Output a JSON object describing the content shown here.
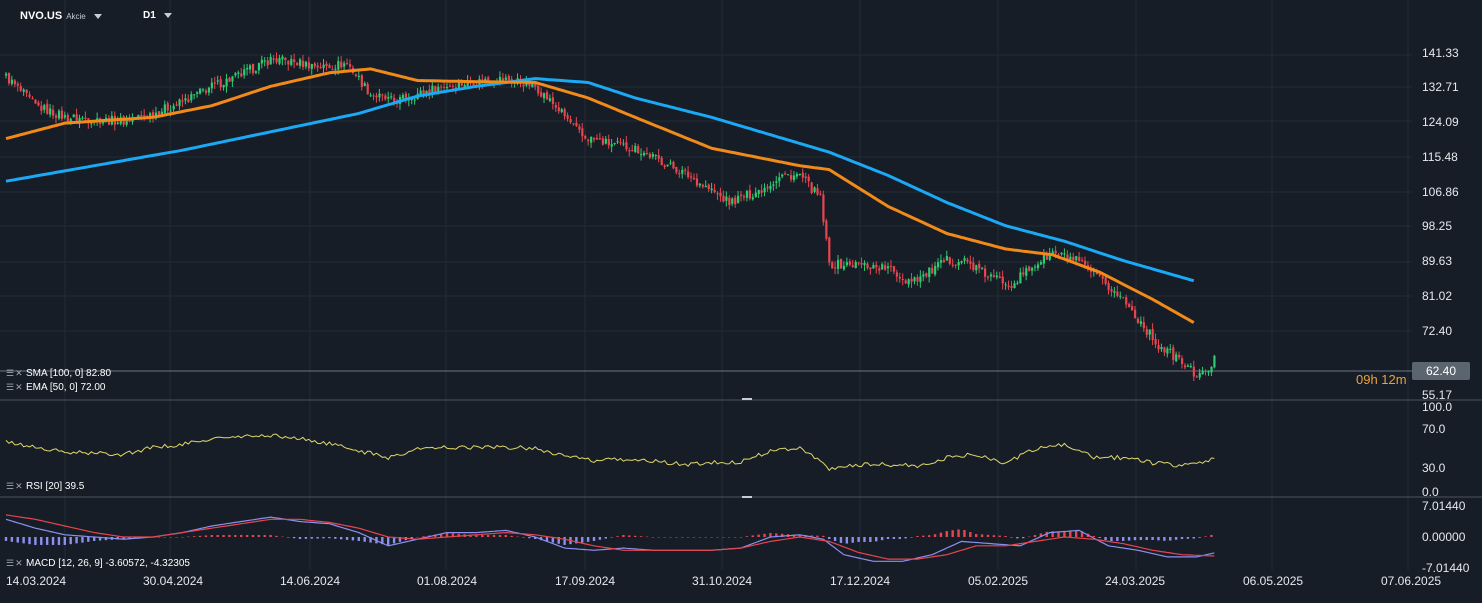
{
  "header": {
    "symbol": "NVO.US",
    "instrument_type": "Akcie",
    "timeframe": "D1"
  },
  "legends": {
    "sma": "SMA [100, 0] 82.80",
    "ema": "EMA [50, 0] 72.00",
    "rsi": "RSI [20] 39.5",
    "macd": "MACD [12, 26, 9] -3.60572, -4.32305"
  },
  "current_price_label": "62.40",
  "countdown": "09h 12m",
  "colors": {
    "background": "#161d26",
    "up_candle": "#2ecc71",
    "down_candle": "#e8454f",
    "sma_line": "#1ba9f5",
    "ema_line": "#f28a1a",
    "rsi_line": "#e0d86a",
    "macd_line": "#8c8ff0",
    "signal_line": "#e8454f",
    "hist_positive": "#e8454f",
    "hist_negative": "#8c8ff0"
  },
  "chart_data": [
    {
      "type": "candlestick",
      "panel": "price",
      "y_ticks": [
        "141.33",
        "132.71",
        "124.09",
        "115.48",
        "106.86",
        "98.25",
        "89.63",
        "81.02",
        "72.40",
        "55.17"
      ],
      "y_range": [
        52,
        146
      ],
      "x_tick_labels": [
        "14.03.2024",
        "30.04.2024",
        "14.06.2024",
        "01.08.2024",
        "17.09.2024",
        "31.10.2024",
        "17.12.2024",
        "05.02.2025",
        "24.03.2025",
        "06.05.2025",
        "07.06.2025"
      ],
      "grid": true,
      "close_anchors": [
        [
          0,
          135.5
        ],
        [
          10,
          128
        ],
        [
          20,
          125
        ],
        [
          30,
          124.5
        ],
        [
          40,
          124
        ],
        [
          50,
          126
        ],
        [
          60,
          129
        ],
        [
          70,
          133
        ],
        [
          80,
          136
        ],
        [
          90,
          140
        ],
        [
          100,
          139
        ],
        [
          108,
          138
        ],
        [
          116,
          139
        ],
        [
          124,
          131
        ],
        [
          132,
          129
        ],
        [
          140,
          131
        ],
        [
          148,
          133
        ],
        [
          158,
          134
        ],
        [
          166,
          135
        ],
        [
          174,
          134.5
        ],
        [
          180,
          133
        ],
        [
          188,
          127
        ],
        [
          196,
          120
        ],
        [
          206,
          118
        ],
        [
          214,
          117
        ],
        [
          222,
          114
        ],
        [
          232,
          110
        ],
        [
          240,
          106
        ],
        [
          246,
          103
        ],
        [
          256,
          106
        ],
        [
          264,
          110
        ],
        [
          270,
          110
        ],
        [
          277,
          104
        ],
        [
          280,
          87
        ],
        [
          290,
          87
        ],
        [
          300,
          86
        ],
        [
          306,
          83
        ],
        [
          312,
          84
        ],
        [
          320,
          88
        ],
        [
          326,
          88
        ],
        [
          334,
          84
        ],
        [
          342,
          82
        ],
        [
          350,
          87
        ],
        [
          356,
          90
        ],
        [
          364,
          88
        ],
        [
          372,
          83
        ],
        [
          380,
          78
        ],
        [
          386,
          72
        ],
        [
          392,
          66
        ],
        [
          398,
          63
        ],
        [
          404,
          59
        ],
        [
          408,
          58.5
        ],
        [
          411,
          62.4
        ]
      ],
      "sma_anchors": [
        [
          0,
          108.5
        ],
        [
          60,
          116.5
        ],
        [
          120,
          126
        ],
        [
          140,
          130.5
        ],
        [
          160,
          133
        ],
        [
          180,
          135
        ],
        [
          198,
          134
        ],
        [
          214,
          130
        ],
        [
          240,
          125
        ],
        [
          280,
          116
        ],
        [
          300,
          110
        ],
        [
          320,
          103
        ],
        [
          340,
          97
        ],
        [
          360,
          93
        ],
        [
          380,
          88
        ],
        [
          404,
          82.8
        ]
      ],
      "ema_anchors": [
        [
          0,
          119.5
        ],
        [
          20,
          123.5
        ],
        [
          50,
          125
        ],
        [
          70,
          128
        ],
        [
          90,
          133
        ],
        [
          110,
          136.5
        ],
        [
          124,
          137.5
        ],
        [
          140,
          134.5
        ],
        [
          160,
          134.2
        ],
        [
          180,
          134
        ],
        [
          198,
          130
        ],
        [
          214,
          125
        ],
        [
          240,
          117
        ],
        [
          270,
          112.5
        ],
        [
          280,
          111.5
        ],
        [
          300,
          102
        ],
        [
          320,
          95
        ],
        [
          340,
          91
        ],
        [
          356,
          89.5
        ],
        [
          372,
          85
        ],
        [
          390,
          78
        ],
        [
          404,
          72
        ]
      ]
    },
    {
      "type": "line",
      "panel": "rsi",
      "name": "RSI [20]",
      "y_ticks": [
        "100.0",
        "70.0",
        "30.0",
        "0.0"
      ],
      "y_range": [
        0,
        100
      ],
      "anchors": [
        [
          0,
          58
        ],
        [
          10,
          52
        ],
        [
          20,
          46
        ],
        [
          30,
          45
        ],
        [
          40,
          44
        ],
        [
          50,
          52
        ],
        [
          60,
          55
        ],
        [
          70,
          62
        ],
        [
          80,
          64
        ],
        [
          90,
          66
        ],
        [
          100,
          62
        ],
        [
          110,
          56
        ],
        [
          120,
          48
        ],
        [
          130,
          40
        ],
        [
          140,
          50
        ],
        [
          150,
          52
        ],
        [
          160,
          52
        ],
        [
          170,
          52
        ],
        [
          180,
          51
        ],
        [
          190,
          42
        ],
        [
          200,
          36
        ],
        [
          210,
          38
        ],
        [
          220,
          36
        ],
        [
          230,
          32
        ],
        [
          240,
          34
        ],
        [
          250,
          35
        ],
        [
          260,
          48
        ],
        [
          270,
          52
        ],
        [
          275,
          40
        ],
        [
          280,
          27
        ],
        [
          290,
          32
        ],
        [
          300,
          32
        ],
        [
          310,
          30
        ],
        [
          320,
          40
        ],
        [
          330,
          44
        ],
        [
          340,
          34
        ],
        [
          350,
          50
        ],
        [
          360,
          55
        ],
        [
          370,
          40
        ],
        [
          380,
          40
        ],
        [
          390,
          34
        ],
        [
          400,
          31
        ],
        [
          405,
          33
        ],
        [
          411,
          39.5
        ]
      ]
    },
    {
      "type": "line_histogram",
      "panel": "macd",
      "name": "MACD [12, 26, 9]",
      "y_ticks": [
        "7.01440",
        "0.00000",
        "-7.01440"
      ],
      "y_range": [
        -8.2,
        8.2
      ],
      "macd_anchors": [
        [
          0,
          4
        ],
        [
          10,
          2
        ],
        [
          20,
          0.5
        ],
        [
          30,
          0
        ],
        [
          40,
          -0.5
        ],
        [
          50,
          0
        ],
        [
          60,
          1
        ],
        [
          70,
          2.5
        ],
        [
          80,
          3.5
        ],
        [
          90,
          4.5
        ],
        [
          100,
          3.5
        ],
        [
          110,
          3
        ],
        [
          120,
          1
        ],
        [
          130,
          -2
        ],
        [
          140,
          -0.5
        ],
        [
          150,
          1
        ],
        [
          160,
          1
        ],
        [
          170,
          1.5
        ],
        [
          180,
          0
        ],
        [
          190,
          -2.5
        ],
        [
          200,
          -3
        ],
        [
          210,
          -2.5
        ],
        [
          220,
          -3
        ],
        [
          230,
          -3
        ],
        [
          240,
          -3
        ],
        [
          250,
          -2.5
        ],
        [
          260,
          0
        ],
        [
          270,
          0.5
        ],
        [
          278,
          -0.5
        ],
        [
          285,
          -4
        ],
        [
          295,
          -5.5
        ],
        [
          305,
          -5.5
        ],
        [
          315,
          -4
        ],
        [
          325,
          -1
        ],
        [
          335,
          -1.5
        ],
        [
          345,
          -2
        ],
        [
          355,
          1
        ],
        [
          365,
          1.5
        ],
        [
          375,
          -2
        ],
        [
          385,
          -3
        ],
        [
          395,
          -4.5
        ],
        [
          405,
          -4.5
        ],
        [
          411,
          -3.6
        ]
      ],
      "signal_anchors": [
        [
          0,
          5
        ],
        [
          10,
          4
        ],
        [
          20,
          2.5
        ],
        [
          30,
          1
        ],
        [
          40,
          0
        ],
        [
          50,
          0
        ],
        [
          60,
          1
        ],
        [
          70,
          2
        ],
        [
          80,
          3
        ],
        [
          90,
          4
        ],
        [
          100,
          4
        ],
        [
          110,
          3.3
        ],
        [
          120,
          2
        ],
        [
          130,
          0
        ],
        [
          140,
          -0.5
        ],
        [
          150,
          0
        ],
        [
          160,
          0.5
        ],
        [
          170,
          1
        ],
        [
          180,
          0.5
        ],
        [
          190,
          -0.5
        ],
        [
          200,
          -2
        ],
        [
          210,
          -3
        ],
        [
          220,
          -3
        ],
        [
          230,
          -3
        ],
        [
          240,
          -3
        ],
        [
          250,
          -2.5
        ],
        [
          260,
          -1
        ],
        [
          270,
          0
        ],
        [
          280,
          -1
        ],
        [
          290,
          -3.5
        ],
        [
          300,
          -5
        ],
        [
          310,
          -5
        ],
        [
          320,
          -4
        ],
        [
          330,
          -2
        ],
        [
          340,
          -2
        ],
        [
          350,
          -1
        ],
        [
          360,
          0
        ],
        [
          370,
          -0.5
        ],
        [
          380,
          -1.5
        ],
        [
          390,
          -3
        ],
        [
          400,
          -4
        ],
        [
          411,
          -4.3
        ]
      ]
    }
  ]
}
